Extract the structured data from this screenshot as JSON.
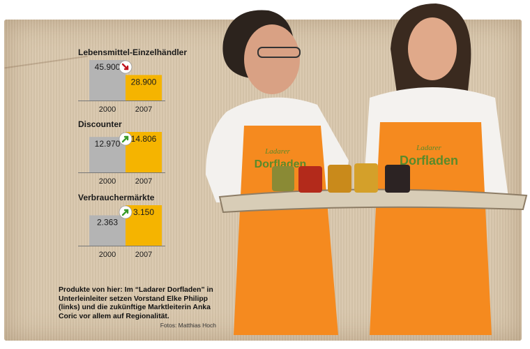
{
  "chart_data": [
    {
      "type": "bar",
      "title": "Lebensmittel-Einzelhändler",
      "categories": [
        "2000",
        "2007"
      ],
      "values": [
        45900,
        28900
      ],
      "value_labels": [
        "45.900",
        "28.900"
      ],
      "trend": "down",
      "colors": [
        "#b4b4b4",
        "#f5b400"
      ]
    },
    {
      "type": "bar",
      "title": "Discounter",
      "categories": [
        "2000",
        "2007"
      ],
      "values": [
        12970,
        14806
      ],
      "value_labels": [
        "12.970",
        "14.806"
      ],
      "trend": "up",
      "colors": [
        "#b4b4b4",
        "#f5b400"
      ]
    },
    {
      "type": "bar",
      "title": "Verbrauchermärkte",
      "categories": [
        "2000",
        "2007"
      ],
      "values": [
        2363,
        3150
      ],
      "value_labels": [
        "2.363",
        "3.150"
      ],
      "trend": "up",
      "colors": [
        "#b4b4b4",
        "#f5b400"
      ]
    }
  ],
  "caption": {
    "text": "Produkte von hier: Im “Ladarer Dorfladen” in Unterleinleiter setzen Vorstand Elke Philipp (links) und die zukünftige Marktleiterin Anka Coric vor allem auf Regionalität.",
    "credit": "Fotos: Matthias Hoch"
  },
  "photo": {
    "apron_text_top": "Ladarer",
    "apron_text_main": "Dorfladen",
    "apron_color": "#f58a1f"
  },
  "icons": {
    "trend_down": "arrow-down-right-icon",
    "trend_up": "arrow-up-right-icon"
  }
}
